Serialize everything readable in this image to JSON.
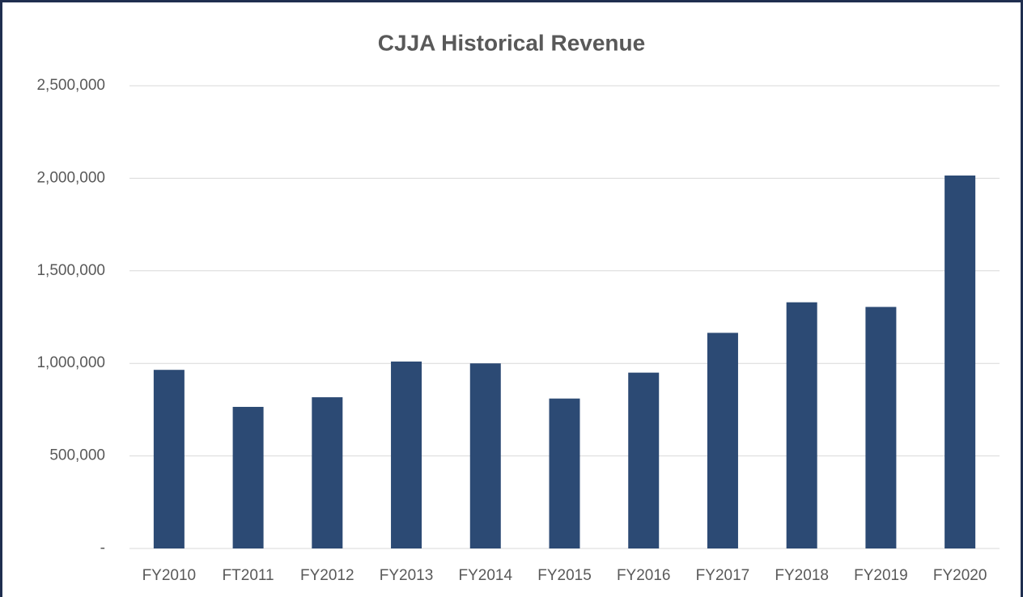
{
  "chart_data": {
    "type": "bar",
    "title": "CJJA Historical Revenue",
    "categories": [
      "FY2010",
      "FT2011",
      "FY2012",
      "FY2013",
      "FY2014",
      "FY2015",
      "FY2016",
      "FY2017",
      "FY2018",
      "FY2019",
      "FY2020"
    ],
    "values": [
      965000,
      765000,
      817000,
      1010000,
      1000000,
      810000,
      950000,
      1165000,
      1330000,
      1305000,
      2015000
    ],
    "color": "#2c4a74",
    "ylim": [
      0,
      2500000
    ],
    "yticks": [
      {
        "value": 0,
        "label": "-"
      },
      {
        "value": 500000,
        "label": "500,000"
      },
      {
        "value": 1000000,
        "label": "1,000,000"
      },
      {
        "value": 1500000,
        "label": "1,500,000"
      },
      {
        "value": 2000000,
        "label": "2,000,000"
      },
      {
        "value": 2500000,
        "label": "2,500,000"
      }
    ],
    "grid": true
  }
}
